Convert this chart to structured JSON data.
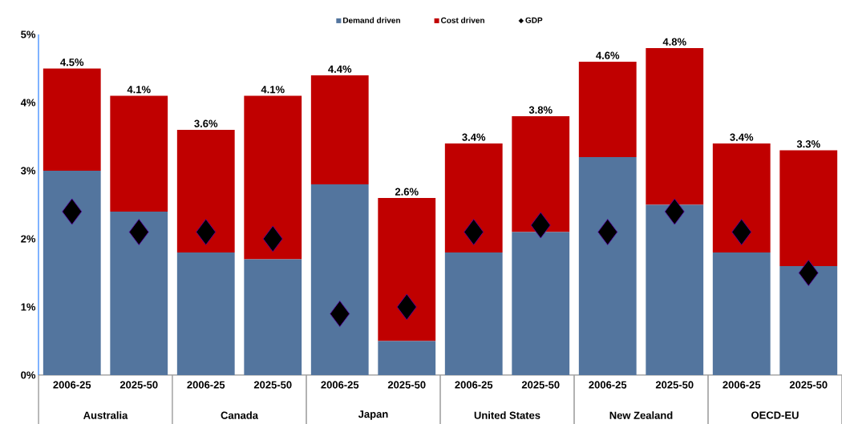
{
  "chart_data": {
    "type": "bar",
    "stacked": true,
    "legend": "top",
    "marker": "diamond",
    "categories": [
      "2006-25",
      "2025-50",
      "2006-25",
      "2025-50",
      "2006-25",
      "2025-50",
      "2006-25",
      "2025-50",
      "2006-25",
      "2025-50",
      "2006-25",
      "2025-50"
    ],
    "series": [
      {
        "name": "Demand driven",
        "color": "#53759e",
        "values": [
          3.0,
          2.4,
          1.8,
          1.7,
          2.8,
          0.5,
          1.8,
          2.1,
          3.2,
          2.5,
          1.8,
          1.6
        ]
      },
      {
        "name": "Cost driven",
        "color": "#c00000",
        "values": [
          1.5,
          1.7,
          1.8,
          2.4,
          1.6,
          2.1,
          1.6,
          1.7,
          1.4,
          2.3,
          1.6,
          1.7
        ]
      },
      {
        "name": "GDP",
        "type": "scatter",
        "color": "#000000",
        "values": [
          2.4,
          2.1,
          2.1,
          2.0,
          0.9,
          1.0,
          2.1,
          2.2,
          2.1,
          2.4,
          2.1,
          1.5
        ]
      }
    ],
    "totals": [
      "4.5%",
      "4.1%",
      "3.6%",
      "4.1%",
      "4.4%",
      "2.6%",
      "3.4%",
      "3.8%",
      "4.6%",
      "4.8%",
      "3.4%",
      "3.3%"
    ],
    "ylim": [
      0,
      5
    ],
    "yticks": [
      {
        "value": 0,
        "label": "0%"
      },
      {
        "value": 1,
        "label": "1%"
      },
      {
        "value": 2,
        "label": "2%"
      },
      {
        "value": 3,
        "label": "3%"
      },
      {
        "value": 4,
        "label": "4%"
      },
      {
        "value": 5,
        "label": "5%"
      }
    ],
    "annotations": [
      "Australia",
      "Canada",
      "Japan",
      "United States",
      "New Zealand",
      "OECD-EU"
    ]
  }
}
